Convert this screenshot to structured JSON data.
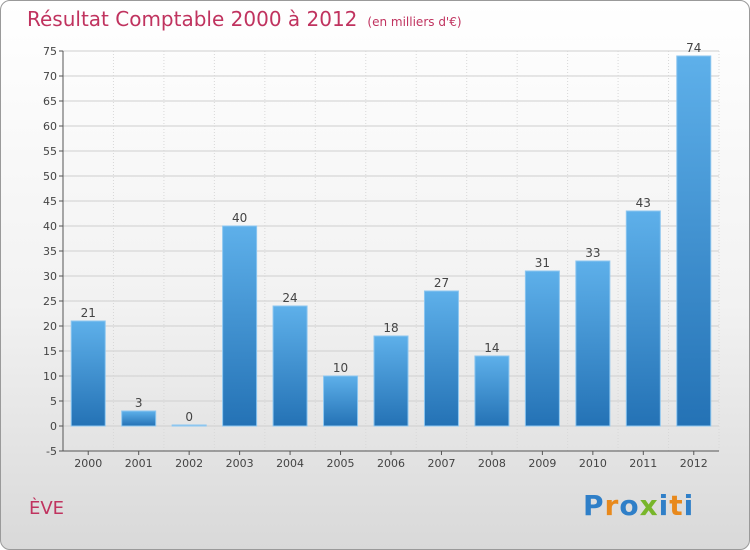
{
  "chart_data": {
    "type": "bar",
    "title": "Résultat Comptable 2000 à 2012",
    "subtitle": "(en milliers d'€)",
    "categories": [
      "2000",
      "2001",
      "2002",
      "2003",
      "2004",
      "2005",
      "2006",
      "2007",
      "2008",
      "2009",
      "2010",
      "2011",
      "2012"
    ],
    "values": [
      21,
      3,
      0,
      40,
      24,
      10,
      18,
      27,
      14,
      31,
      33,
      43,
      74
    ],
    "ylim": [
      -5,
      75
    ],
    "ytick_step": 5,
    "xlabel": "",
    "ylabel": "",
    "grid": true,
    "bar_color": "#3a8fd0"
  },
  "place_name": "ÈVE",
  "logo": {
    "text": "Proxiti",
    "letters": [
      {
        "ch": "P",
        "color": "#2f7fc8"
      },
      {
        "ch": "r",
        "color": "#e8891c"
      },
      {
        "ch": "o",
        "color": "#2f7fc8"
      },
      {
        "ch": "x",
        "color": "#78b62b"
      },
      {
        "ch": "i",
        "color": "#2f7fc8"
      },
      {
        "ch": "t",
        "color": "#e8891c"
      },
      {
        "ch": "i",
        "color": "#2f7fc8"
      }
    ]
  }
}
